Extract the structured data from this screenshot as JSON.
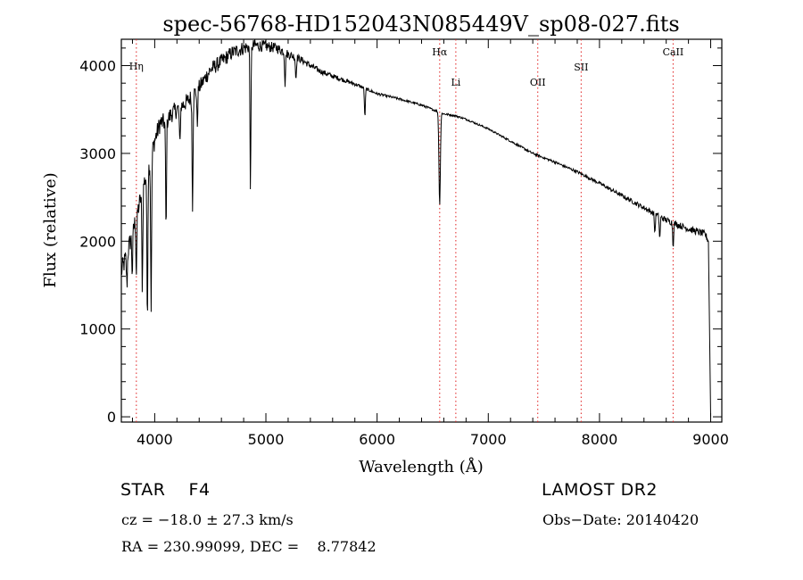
{
  "chart_data": {
    "type": "line",
    "title": "spec-56768-HD152043N085449V_sp08-027.fits",
    "xlabel": "Wavelength (Å)",
    "ylabel": "Flux (relative)",
    "xlim": [
      3700,
      9100
    ],
    "ylim": [
      -60,
      4300
    ],
    "x_ticks": [
      4000,
      5000,
      6000,
      7000,
      8000,
      9000
    ],
    "x_tick_labels": [
      "4000",
      "5000",
      "6000",
      "7000",
      "8000",
      "9000"
    ],
    "y_ticks": [
      0,
      1000,
      2000,
      3000,
      4000
    ],
    "y_tick_labels": [
      "0",
      "1000",
      "2000",
      "3000",
      "4000"
    ],
    "grid": false,
    "line_markers": [
      {
        "label": "Hη",
        "x": 3835
      },
      {
        "label": "Hα",
        "x": 6563
      },
      {
        "label": "Li",
        "x": 6708
      },
      {
        "label": "OII",
        "x": 7445
      },
      {
        "label": "SII",
        "x": 7835
      },
      {
        "label": "CaII",
        "x": 8662
      }
    ],
    "series": [
      {
        "continuum": [
          [
            3700,
            1650
          ],
          [
            3750,
            1850
          ],
          [
            3800,
            2100
          ],
          [
            3850,
            2350
          ],
          [
            3900,
            2650
          ],
          [
            3950,
            2850
          ],
          [
            4000,
            3150
          ],
          [
            4050,
            3350
          ],
          [
            4100,
            3350
          ],
          [
            4150,
            3450
          ],
          [
            4200,
            3500
          ],
          [
            4300,
            3600
          ],
          [
            4400,
            3750
          ],
          [
            4500,
            3950
          ],
          [
            4600,
            4050
          ],
          [
            4700,
            4150
          ],
          [
            4800,
            4200
          ],
          [
            4900,
            4230
          ],
          [
            5000,
            4220
          ],
          [
            5100,
            4200
          ],
          [
            5200,
            4130
          ],
          [
            5300,
            4080
          ],
          [
            5400,
            4000
          ],
          [
            5500,
            3930
          ],
          [
            5600,
            3880
          ],
          [
            5800,
            3790
          ],
          [
            6000,
            3680
          ],
          [
            6200,
            3620
          ],
          [
            6400,
            3550
          ],
          [
            6600,
            3450
          ],
          [
            6700,
            3430
          ],
          [
            6800,
            3390
          ],
          [
            7000,
            3280
          ],
          [
            7200,
            3140
          ],
          [
            7400,
            3000
          ],
          [
            7600,
            2900
          ],
          [
            7800,
            2790
          ],
          [
            8000,
            2660
          ],
          [
            8200,
            2520
          ],
          [
            8400,
            2380
          ],
          [
            8600,
            2240
          ],
          [
            8800,
            2140
          ],
          [
            8950,
            2080
          ],
          [
            8980,
            2000
          ],
          [
            8990,
            1000
          ],
          [
            9000,
            0
          ]
        ],
        "absorption_lines": [
          {
            "x": 3750,
            "depth": 350
          },
          {
            "x": 3798,
            "depth": 450
          },
          {
            "x": 3835,
            "depth": 650
          },
          {
            "x": 3889,
            "depth": 1100
          },
          {
            "x": 3934,
            "depth": 1650
          },
          {
            "x": 3968,
            "depth": 1700
          },
          {
            "x": 4102,
            "depth": 1250
          },
          {
            "x": 4226,
            "depth": 450
          },
          {
            "x": 4340,
            "depth": 1250
          },
          {
            "x": 4383,
            "depth": 400
          },
          {
            "x": 4861,
            "depth": 1600
          },
          {
            "x": 5172,
            "depth": 350
          },
          {
            "x": 5270,
            "depth": 250
          },
          {
            "x": 5890,
            "depth": 330
          },
          {
            "x": 6563,
            "depth": 1050
          },
          {
            "x": 8498,
            "depth": 220
          },
          {
            "x": 8542,
            "depth": 260
          },
          {
            "x": 8662,
            "depth": 260
          }
        ],
        "noise_amplitude": [
          [
            3700,
            120
          ],
          [
            4000,
            110
          ],
          [
            4400,
            90
          ],
          [
            4800,
            80
          ],
          [
            5400,
            35
          ],
          [
            6000,
            15
          ],
          [
            7000,
            10
          ],
          [
            8000,
            18
          ],
          [
            8600,
            35
          ],
          [
            8950,
            40
          ]
        ]
      }
    ]
  },
  "info": {
    "object_line": "STAR    F4",
    "survey": "LAMOST DR2",
    "cz": "cz = −18.0 ± 27.3 km/s",
    "obs_date": "Obs−Date: 20140420",
    "radec": "RA = 230.99099, DEC =    8.77842"
  }
}
